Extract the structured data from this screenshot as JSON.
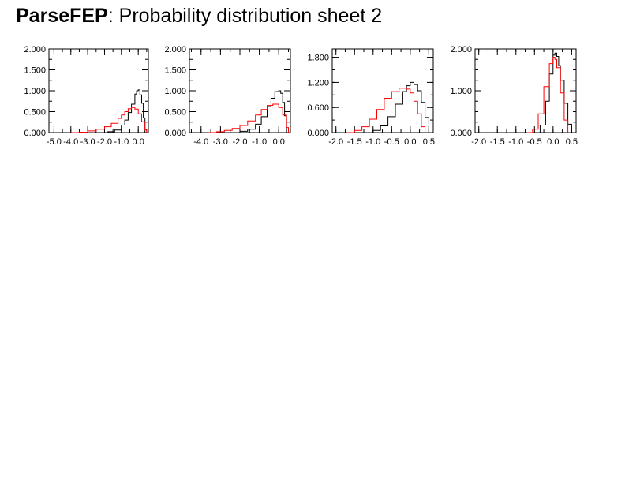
{
  "header": {
    "brand": "ParseFEP",
    "subtitle": ": Probability distribution sheet 2"
  },
  "colors": {
    "forward": "#000000",
    "backward": "#ff0000"
  },
  "chart_data": [
    {
      "type": "line",
      "xlim": [
        -5.3,
        0.6
      ],
      "ylim": [
        0,
        2.0
      ],
      "x_ticks": [
        -5.0,
        -4.0,
        -3.0,
        -2.0,
        -1.0,
        0.0
      ],
      "x_tick_labels": [
        "-5.0",
        "-4.0",
        "-3.0",
        "-2.0",
        "-1.0",
        "0.0"
      ],
      "x_minor_step": 0.5,
      "y_ticks": [
        0,
        0.5,
        1.0,
        1.5,
        2.0
      ],
      "y_tick_labels": [
        "0.000",
        "0.500",
        "1.000",
        "1.500",
        "2.000"
      ],
      "y_minor_step": 0.25,
      "series": [
        {
          "color": "#000000",
          "x": [
            -2.2,
            -1.8,
            -1.4,
            -1.0,
            -0.8,
            -0.6,
            -0.4,
            -0.2,
            -0.1,
            0.0,
            0.1,
            0.2,
            0.3,
            0.4
          ],
          "y": [
            0.0,
            0.02,
            0.06,
            0.18,
            0.3,
            0.48,
            0.68,
            0.92,
            1.0,
            1.02,
            0.9,
            0.7,
            0.35,
            0.0
          ]
        },
        {
          "color": "#ff0000",
          "x": [
            -4.0,
            -3.5,
            -3.0,
            -2.5,
            -2.0,
            -1.6,
            -1.2,
            -1.0,
            -0.8,
            -0.6,
            -0.4,
            -0.2,
            0.0,
            0.2,
            0.4,
            0.5
          ],
          "y": [
            0.0,
            0.01,
            0.04,
            0.08,
            0.14,
            0.22,
            0.34,
            0.42,
            0.5,
            0.57,
            0.6,
            0.56,
            0.45,
            0.26,
            0.06,
            0.0
          ]
        }
      ]
    },
    {
      "type": "line",
      "xlim": [
        -4.6,
        0.6
      ],
      "ylim": [
        0,
        2.0
      ],
      "x_ticks": [
        -4.0,
        -3.0,
        -2.0,
        -1.0,
        0.0
      ],
      "x_tick_labels": [
        "-4.0",
        "-3.0",
        "-2.0",
        "-1.0",
        "0.0"
      ],
      "x_minor_step": 0.5,
      "y_ticks": [
        0,
        0.5,
        1.0,
        1.5,
        2.0
      ],
      "y_tick_labels": [
        "0.000",
        "0.500",
        "1.000",
        "1.500",
        "2.000"
      ],
      "y_minor_step": 0.25,
      "series": [
        {
          "color": "#000000",
          "x": [
            -2.3,
            -2.0,
            -1.6,
            -1.2,
            -0.9,
            -0.6,
            -0.4,
            -0.2,
            0.0,
            0.1,
            0.2,
            0.3,
            0.4
          ],
          "y": [
            0.0,
            0.03,
            0.08,
            0.2,
            0.38,
            0.62,
            0.82,
            0.98,
            1.0,
            0.94,
            0.72,
            0.4,
            0.0
          ]
        },
        {
          "color": "#ff0000",
          "x": [
            -3.6,
            -3.2,
            -2.8,
            -2.4,
            -2.0,
            -1.6,
            -1.2,
            -0.9,
            -0.6,
            -0.3,
            0.0,
            0.2,
            0.4,
            0.5
          ],
          "y": [
            0.0,
            0.02,
            0.05,
            0.1,
            0.17,
            0.28,
            0.42,
            0.55,
            0.65,
            0.68,
            0.6,
            0.42,
            0.12,
            0.0
          ]
        }
      ]
    },
    {
      "type": "line",
      "xlim": [
        -2.1,
        0.62
      ],
      "ylim": [
        0,
        2.0
      ],
      "x_ticks": [
        -2.0,
        -1.5,
        -1.0,
        -0.5,
        0.0,
        0.5
      ],
      "x_tick_labels": [
        "-2.0",
        "-1.5",
        "-1.0",
        "-0.5",
        "0.0",
        "0.5"
      ],
      "x_minor_step": 0.25,
      "y_ticks": [
        0,
        0.6,
        1.2,
        1.8
      ],
      "y_tick_labels": [
        "0.000",
        "0.600",
        "1.200",
        "1.800"
      ],
      "y_minor_step": 0.3,
      "series": [
        {
          "color": "#000000",
          "x": [
            -1.3,
            -1.0,
            -0.8,
            -0.6,
            -0.4,
            -0.2,
            -0.1,
            0.0,
            0.1,
            0.2,
            0.3,
            0.4,
            0.5
          ],
          "y": [
            0.0,
            0.05,
            0.16,
            0.38,
            0.68,
            0.98,
            1.12,
            1.2,
            1.15,
            1.0,
            0.72,
            0.36,
            0.02
          ]
        },
        {
          "color": "#ff0000",
          "x": [
            -1.7,
            -1.5,
            -1.3,
            -1.1,
            -0.9,
            -0.7,
            -0.5,
            -0.3,
            -0.1,
            0.0,
            0.1,
            0.2,
            0.3,
            0.4
          ],
          "y": [
            0.0,
            0.05,
            0.14,
            0.32,
            0.55,
            0.82,
            0.98,
            1.06,
            1.04,
            0.95,
            0.75,
            0.45,
            0.14,
            0.0
          ]
        }
      ]
    },
    {
      "type": "line",
      "xlim": [
        -2.1,
        0.62
      ],
      "ylim": [
        0,
        2.0
      ],
      "x_ticks": [
        -2.0,
        -1.5,
        -1.0,
        -0.5,
        0.0,
        0.5
      ],
      "x_tick_labels": [
        "-2.0",
        "-1.5",
        "-1.0",
        "-0.5",
        "0.0",
        "0.5"
      ],
      "x_minor_step": 0.25,
      "y_ticks": [
        0,
        1.0,
        2.0
      ],
      "y_tick_labels": [
        "0.000",
        "1.000",
        "2.000"
      ],
      "y_minor_step": 0.25,
      "series": [
        {
          "color": "#000000",
          "x": [
            -0.5,
            -0.35,
            -0.2,
            -0.1,
            0.0,
            0.05,
            0.1,
            0.15,
            0.2,
            0.3,
            0.4,
            0.5
          ],
          "y": [
            0.0,
            0.18,
            0.75,
            1.4,
            1.85,
            1.9,
            1.82,
            1.6,
            1.25,
            0.7,
            0.2,
            0.0
          ]
        },
        {
          "color": "#ff0000",
          "x": [
            -0.7,
            -0.55,
            -0.4,
            -0.25,
            -0.1,
            0.0,
            0.05,
            0.1,
            0.2,
            0.3,
            0.4
          ],
          "y": [
            0.0,
            0.08,
            0.45,
            1.1,
            1.65,
            1.8,
            1.75,
            1.55,
            0.95,
            0.3,
            0.0
          ]
        }
      ]
    }
  ]
}
